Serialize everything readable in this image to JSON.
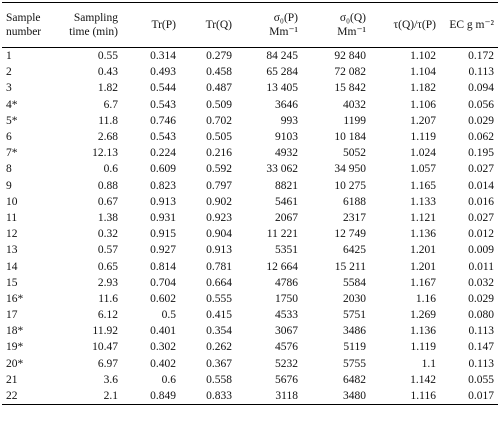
{
  "table": {
    "header": [
      [
        "Sample",
        "number"
      ],
      [
        "Sampling",
        "time (min)"
      ],
      [
        "Tr(P)"
      ],
      [
        "Tr(Q)"
      ],
      [
        "σ₀(P)",
        "Mm⁻¹"
      ],
      [
        "σ₀(Q)",
        "Mm⁻¹"
      ],
      [
        "τ(Q)/τ(P)"
      ],
      [
        "EC g m⁻²"
      ]
    ],
    "rows": [
      [
        "1",
        "0.55",
        "0.314",
        "0.279",
        "84 245",
        "92 840",
        "1.102",
        "0.172"
      ],
      [
        "2",
        "0.43",
        "0.493",
        "0.458",
        "65 284",
        "72 082",
        "1.104",
        "0.113"
      ],
      [
        "3",
        "1.82",
        "0.544",
        "0.487",
        "13 405",
        "15 842",
        "1.182",
        "0.094"
      ],
      [
        "4*",
        "6.7",
        "0.543",
        "0.509",
        "3646",
        "4032",
        "1.106",
        "0.056"
      ],
      [
        "5*",
        "11.8",
        "0.746",
        "0.702",
        "993",
        "1199",
        "1.207",
        "0.029"
      ],
      [
        "6",
        "2.68",
        "0.543",
        "0.505",
        "9103",
        "10 184",
        "1.119",
        "0.062"
      ],
      [
        "7*",
        "12.13",
        "0.224",
        "0.216",
        "4932",
        "5052",
        "1.024",
        "0.195"
      ],
      [
        "8",
        "0.6",
        "0.609",
        "0.592",
        "33 062",
        "34 950",
        "1.057",
        "0.027"
      ],
      [
        "9",
        "0.88",
        "0.823",
        "0.797",
        "8821",
        "10 275",
        "1.165",
        "0.014"
      ],
      [
        "10",
        "0.67",
        "0.913",
        "0.902",
        "5461",
        "6188",
        "1.133",
        "0.016"
      ],
      [
        "11",
        "1.38",
        "0.931",
        "0.923",
        "2067",
        "2317",
        "1.121",
        "0.027"
      ],
      [
        "12",
        "0.32",
        "0.915",
        "0.904",
        "11 221",
        "12 749",
        "1.136",
        "0.012"
      ],
      [
        "13",
        "0.57",
        "0.927",
        "0.913",
        "5351",
        "6425",
        "1.201",
        "0.009"
      ],
      [
        "14",
        "0.65",
        "0.814",
        "0.781",
        "12 664",
        "15 211",
        "1.201",
        "0.011"
      ],
      [
        "15",
        "2.93",
        "0.704",
        "0.664",
        "4786",
        "5584",
        "1.167",
        "0.032"
      ],
      [
        "16*",
        "11.6",
        "0.602",
        "0.555",
        "1750",
        "2030",
        "1.16",
        "0.029"
      ],
      [
        "17",
        "6.12",
        "0.5",
        "0.415",
        "4533",
        "5751",
        "1.269",
        "0.080"
      ],
      [
        "18*",
        "11.92",
        "0.401",
        "0.354",
        "3067",
        "3486",
        "1.136",
        "0.113"
      ],
      [
        "19*",
        "10.47",
        "0.302",
        "0.262",
        "4576",
        "5119",
        "1.119",
        "0.147"
      ],
      [
        "20*",
        "6.97",
        "0.402",
        "0.367",
        "5232",
        "5755",
        "1.1",
        "0.113"
      ],
      [
        "21",
        "3.6",
        "0.6",
        "0.558",
        "5676",
        "6482",
        "1.142",
        "0.055"
      ],
      [
        "22",
        "2.1",
        "0.849",
        "0.833",
        "3118",
        "3480",
        "1.116",
        "0.017"
      ]
    ]
  }
}
